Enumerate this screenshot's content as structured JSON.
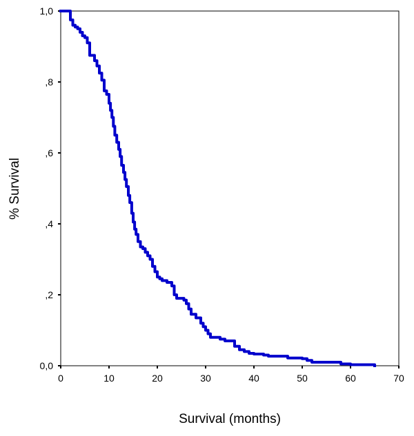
{
  "chart_data": {
    "type": "line",
    "title": "",
    "xlabel": "Survival (months)",
    "ylabel": "% Survival",
    "xlim": [
      0,
      70
    ],
    "ylim": [
      0,
      1
    ],
    "x_ticks": [
      {
        "value": 0,
        "label": "0"
      },
      {
        "value": 10,
        "label": "10"
      },
      {
        "value": 20,
        "label": "20"
      },
      {
        "value": 30,
        "label": "30"
      },
      {
        "value": 40,
        "label": "40"
      },
      {
        "value": 50,
        "label": "50"
      },
      {
        "value": 60,
        "label": "60"
      },
      {
        "value": 70,
        "label": "70"
      }
    ],
    "y_ticks": [
      {
        "value": 0,
        "label": "0,0"
      },
      {
        "value": 0.2,
        "label": ",2"
      },
      {
        "value": 0.4,
        "label": ",4"
      },
      {
        "value": 0.6,
        "label": ",6"
      },
      {
        "value": 0.8,
        "label": ",8"
      },
      {
        "value": 1.0,
        "label": "1,0"
      }
    ],
    "grid": false,
    "series": [
      {
        "color": "#0000cc",
        "step": true,
        "points": [
          [
            0,
            1.0
          ],
          [
            1.5,
            1.0
          ],
          [
            2,
            0.975
          ],
          [
            2.5,
            0.96
          ],
          [
            3,
            0.955
          ],
          [
            3.5,
            0.95
          ],
          [
            4,
            0.94
          ],
          [
            4.5,
            0.93
          ],
          [
            5,
            0.925
          ],
          [
            5.5,
            0.91
          ],
          [
            6,
            0.875
          ],
          [
            7,
            0.86
          ],
          [
            7.5,
            0.845
          ],
          [
            8,
            0.825
          ],
          [
            8.5,
            0.805
          ],
          [
            9,
            0.775
          ],
          [
            9.5,
            0.765
          ],
          [
            10,
            0.74
          ],
          [
            10.3,
            0.72
          ],
          [
            10.6,
            0.7
          ],
          [
            10.9,
            0.675
          ],
          [
            11.2,
            0.65
          ],
          [
            11.6,
            0.63
          ],
          [
            12,
            0.61
          ],
          [
            12.3,
            0.59
          ],
          [
            12.6,
            0.565
          ],
          [
            13,
            0.545
          ],
          [
            13.3,
            0.525
          ],
          [
            13.6,
            0.505
          ],
          [
            14,
            0.48
          ],
          [
            14.3,
            0.46
          ],
          [
            14.7,
            0.43
          ],
          [
            15,
            0.405
          ],
          [
            15.3,
            0.385
          ],
          [
            15.6,
            0.37
          ],
          [
            16,
            0.35
          ],
          [
            16.5,
            0.335
          ],
          [
            17,
            0.33
          ],
          [
            17.5,
            0.32
          ],
          [
            18,
            0.31
          ],
          [
            18.5,
            0.3
          ],
          [
            19,
            0.28
          ],
          [
            19.5,
            0.265
          ],
          [
            20,
            0.25
          ],
          [
            20.5,
            0.245
          ],
          [
            21,
            0.24
          ],
          [
            22,
            0.235
          ],
          [
            23,
            0.225
          ],
          [
            23.5,
            0.2
          ],
          [
            24,
            0.19
          ],
          [
            25.5,
            0.185
          ],
          [
            26,
            0.175
          ],
          [
            26.5,
            0.16
          ],
          [
            27,
            0.145
          ],
          [
            28,
            0.135
          ],
          [
            29,
            0.12
          ],
          [
            29.5,
            0.11
          ],
          [
            30,
            0.1
          ],
          [
            30.5,
            0.09
          ],
          [
            31,
            0.08
          ],
          [
            33,
            0.075
          ],
          [
            34,
            0.07
          ],
          [
            36,
            0.055
          ],
          [
            37,
            0.045
          ],
          [
            38,
            0.04
          ],
          [
            39,
            0.035
          ],
          [
            40,
            0.033
          ],
          [
            42,
            0.03
          ],
          [
            43,
            0.027
          ],
          [
            47,
            0.022
          ],
          [
            50,
            0.02
          ],
          [
            51,
            0.015
          ],
          [
            52,
            0.01
          ],
          [
            58,
            0.005
          ],
          [
            60,
            0.003
          ],
          [
            65,
            0.0
          ]
        ]
      }
    ]
  }
}
